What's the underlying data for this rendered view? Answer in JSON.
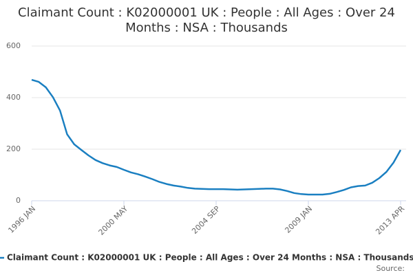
{
  "chart_data": {
    "type": "line",
    "title": "Claimant Count : K02000001 UK : People : All Ages : Over 24 Months : NSA : Thousands",
    "categories": [
      "1996 JAN",
      null,
      null,
      null,
      null,
      null,
      null,
      null,
      null,
      null,
      null,
      null,
      null,
      "2000 MAY",
      null,
      null,
      null,
      null,
      null,
      null,
      null,
      null,
      null,
      null,
      null,
      null,
      "2004 SEP",
      null,
      null,
      null,
      null,
      null,
      null,
      null,
      null,
      null,
      null,
      null,
      null,
      "2009 JAN",
      null,
      null,
      null,
      null,
      null,
      null,
      null,
      null,
      null,
      null,
      null,
      null,
      "2013 APR"
    ],
    "series": [
      {
        "name": "Claimant Count : K02000001 UK : People : All Ages : Over 24 Months : NSA : Thousands",
        "color": "#1a7fc1",
        "values": [
          469,
          461,
          440,
          402,
          350,
          258,
          219,
          197,
          176,
          158,
          146,
          137,
          131,
          120,
          110,
          103,
          94,
          84,
          73,
          65,
          59,
          55,
          50,
          47,
          46,
          45,
          45,
          45,
          44,
          43,
          44,
          45,
          46,
          47,
          47,
          44,
          38,
          30,
          26,
          24,
          24,
          24,
          27,
          34,
          42,
          52,
          57,
          59,
          70,
          88,
          112,
          148,
          197
        ]
      }
    ],
    "ylim": [
      0,
      600
    ],
    "yticks": [
      0,
      200,
      400,
      600
    ],
    "grid": true,
    "source": "Source:"
  }
}
